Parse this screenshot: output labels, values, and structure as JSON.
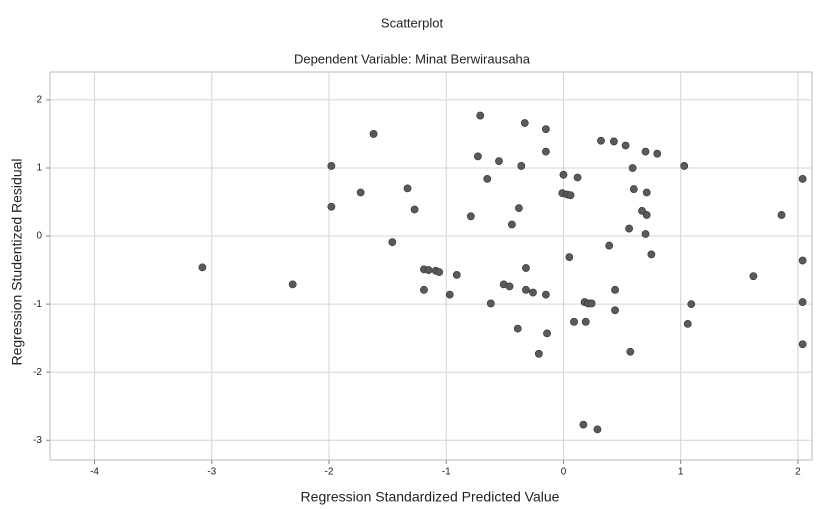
{
  "chart_data": {
    "type": "scatter",
    "title": "Scatterplot",
    "subtitle": "Dependent Variable: Minat Berwirausaha",
    "xlabel": "Regression Standardized Predicted Value",
    "ylabel": "Regression Studentized Residual",
    "color": "#5a5a5a",
    "grid": true,
    "xlim": [
      -4.38,
      2.12
    ],
    "ylim": [
      -3.29,
      2.41
    ],
    "xticks": [
      -4,
      -3,
      -2,
      -1,
      0,
      1,
      2
    ],
    "yticks": [
      -3,
      -2,
      -1,
      0,
      1,
      2
    ],
    "x": [
      -3.08,
      -2.31,
      -1.98,
      -1.98,
      -1.73,
      -1.62,
      -1.46,
      -1.33,
      -1.27,
      -1.19,
      -1.15,
      -1.09,
      -1.06,
      -1.19,
      -0.97,
      -0.91,
      -0.79,
      -0.71,
      -0.73,
      -0.65,
      -0.62,
      -0.55,
      -0.51,
      -0.46,
      -0.44,
      -0.38,
      -0.39,
      -0.36,
      -0.33,
      -0.32,
      -0.32,
      -0.26,
      -0.21,
      -0.15,
      -0.15,
      -0.15,
      -0.14,
      0.0,
      -0.01,
      0.03,
      0.06,
      0.05,
      0.12,
      0.09,
      0.19,
      0.18,
      0.21,
      0.24,
      0.17,
      0.29,
      0.32,
      0.39,
      0.43,
      0.44,
      0.44,
      0.53,
      0.56,
      0.57,
      0.59,
      0.6,
      0.67,
      0.7,
      0.71,
      0.71,
      0.7,
      0.75,
      0.8,
      1.03,
      1.06,
      1.09,
      1.86,
      1.62,
      2.04,
      2.04,
      2.04,
      2.04
    ],
    "values": [
      -0.46,
      -0.71,
      1.03,
      0.43,
      0.64,
      1.5,
      -0.09,
      0.7,
      0.39,
      -0.49,
      -0.5,
      -0.51,
      -0.53,
      -0.79,
      -0.86,
      -0.57,
      0.29,
      1.77,
      1.17,
      0.84,
      -0.99,
      1.1,
      -0.71,
      -0.74,
      0.17,
      0.41,
      -1.36,
      1.03,
      1.66,
      -0.47,
      -0.79,
      -0.83,
      -1.73,
      1.57,
      1.24,
      -0.86,
      -1.43,
      0.9,
      0.63,
      0.61,
      0.6,
      -0.31,
      0.86,
      -1.26,
      -1.26,
      -0.97,
      -0.99,
      -0.99,
      -2.77,
      -2.84,
      1.4,
      -0.14,
      1.39,
      -1.09,
      -0.79,
      1.33,
      0.11,
      -1.7,
      1.0,
      0.69,
      0.37,
      1.24,
      0.64,
      0.31,
      0.03,
      -0.27,
      1.21,
      1.03,
      -1.29,
      -1.0,
      0.31,
      -0.59,
      0.84,
      -0.36,
      -0.97,
      -1.59
    ]
  }
}
